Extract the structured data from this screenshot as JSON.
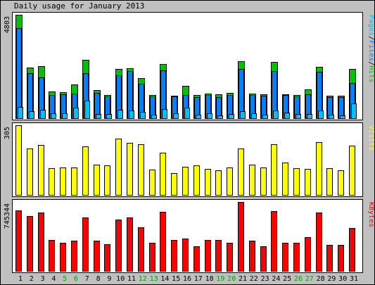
{
  "chart_data": {
    "type": "bar",
    "title": "Daily usage for January 2013",
    "categories": [
      "1",
      "2",
      "3",
      "4",
      "5",
      "6",
      "7",
      "8",
      "9",
      "10",
      "11",
      "12",
      "13",
      "14",
      "15",
      "16",
      "17",
      "18",
      "19",
      "20",
      "21",
      "22",
      "23",
      "24",
      "25",
      "26",
      "27",
      "28",
      "29",
      "30",
      "31"
    ],
    "weekend_days": [
      "5",
      "6",
      "12",
      "13",
      "19",
      "20",
      "26",
      "27"
    ],
    "colors": {
      "background": "#c0c0c0",
      "panel": "#ffffff",
      "hits": "#00c000",
      "files": "#0080ff",
      "pages": "#00c0ff",
      "visits": "#ffff00",
      "kbytes": "#ff0000",
      "weekday_label": "#000000",
      "weekend_label": "#00a000"
    },
    "panels": [
      {
        "name": "pages-files-hits",
        "max_label": "4803",
        "ymax": 4803,
        "legend": [
          {
            "text": "Pages",
            "color": "#00c0ff"
          },
          {
            "text": "/",
            "color": "#000000"
          },
          {
            "text": "Files",
            "color": "#0080ff"
          },
          {
            "text": "/",
            "color": "#000000"
          },
          {
            "text": "Hits",
            "color": "#00c000"
          }
        ],
        "series": [
          {
            "name": "Hits",
            "color": "#00c000",
            "values": [
              4803,
              2368,
              2433,
              1249,
              1219,
              1568,
              2722,
              1311,
              1081,
              2273,
              2305,
              1871,
              1078,
              2528,
              1037,
              1499,
              1066,
              1144,
              1100,
              1174,
              2654,
              1158,
              1107,
              2624,
              1118,
              1085,
              1351,
              2384,
              1052,
              1036,
              2278
            ]
          },
          {
            "name": "Files",
            "color": "#0080ff",
            "values": [
              4173,
              2092,
              1906,
              1069,
              1102,
              1158,
              2081,
              1168,
              1016,
              2003,
              2178,
              1595,
              1006,
              2234,
              998,
              1077,
              984,
              1087,
              975,
              1078,
              2277,
              1064,
              1041,
              2200,
              1094,
              1011,
              1105,
              2172,
              984,
              965,
              1619
            ]
          },
          {
            "name": "Pages",
            "color": "#00c0ff",
            "values": [
              537,
              327,
              385,
              218,
              223,
              484,
              819,
              194,
              185,
              377,
              345,
              284,
              151,
              420,
              228,
              505,
              168,
              229,
              143,
              212,
              318,
              215,
              164,
              344,
              270,
              201,
              208,
              357,
              162,
              145,
              676
            ]
          }
        ]
      },
      {
        "name": "visits",
        "max_label": "305",
        "ymax": 305,
        "legend": [
          {
            "text": "Visits",
            "color": "#ffff00"
          }
        ],
        "series": [
          {
            "name": "Visits",
            "color": "#ffff00",
            "values": [
              305,
              203,
              219,
              117,
              121,
              119,
              213,
              134,
              129,
              246,
              228,
              221,
              111,
              184,
              94,
              124,
              130,
              115,
              109,
              121,
              204,
              134,
              121,
              222,
              141,
              118,
              114,
              232,
              117,
              109,
              217
            ]
          }
        ]
      },
      {
        "name": "kbytes",
        "max_label": "745344",
        "ymax": 745344,
        "legend": [
          {
            "text": "KBytes",
            "color": "#ff0000"
          }
        ],
        "series": [
          {
            "name": "KBytes",
            "color": "#ff0000",
            "values": [
              653425,
              593998,
              627713,
              331880,
              308008,
              328665,
              578637,
              325034,
              289587,
              557452,
              575843,
              468818,
              306123,
              637913,
              333081,
              352008,
              264007,
              331002,
              331002,
              303129,
              745344,
              325034,
              264007,
              646004,
              306123,
              306123,
              368252,
              627713,
              281546,
              281546,
              463504
            ]
          }
        ]
      }
    ],
    "grid": false,
    "legend_position": "right"
  }
}
